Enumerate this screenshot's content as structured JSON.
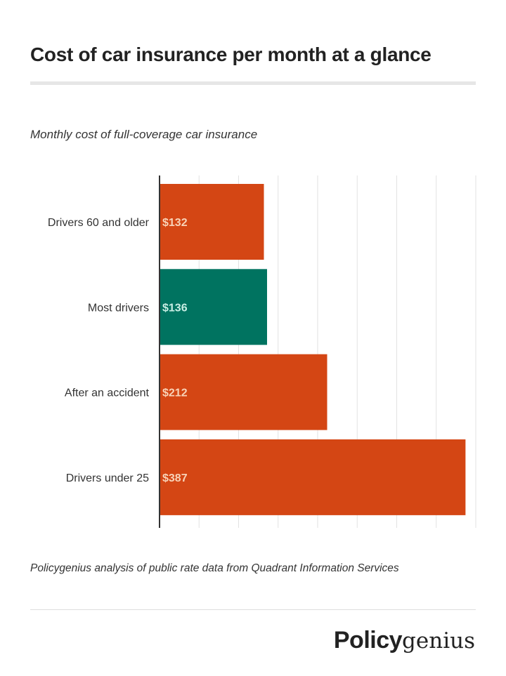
{
  "title": "Cost of car insurance per month at a glance",
  "chart_data": {
    "type": "bar",
    "orientation": "horizontal",
    "subtitle": "Monthly cost of full-coverage car insurance",
    "categories": [
      "Drivers 60 and older",
      "Most drivers",
      "After an accident",
      "Drivers under 25"
    ],
    "values": [
      132,
      136,
      212,
      387
    ],
    "data_labels": [
      "$132",
      "$136",
      "$212",
      "$387"
    ],
    "colors": [
      "#d44614",
      "#007360",
      "#d44614",
      "#d44614"
    ],
    "label_colors": [
      "#f8d3b8",
      "#c9eee4",
      "#f8d3b8",
      "#f8d3b8"
    ],
    "xlim": [
      0,
      400
    ],
    "grid_step": 50,
    "grid": true,
    "x_tick_labels_shown": false
  },
  "source": "Policygenius analysis of public rate data from Quadrant Information Services",
  "logo": {
    "bold": "Policy",
    "light": "genius"
  }
}
